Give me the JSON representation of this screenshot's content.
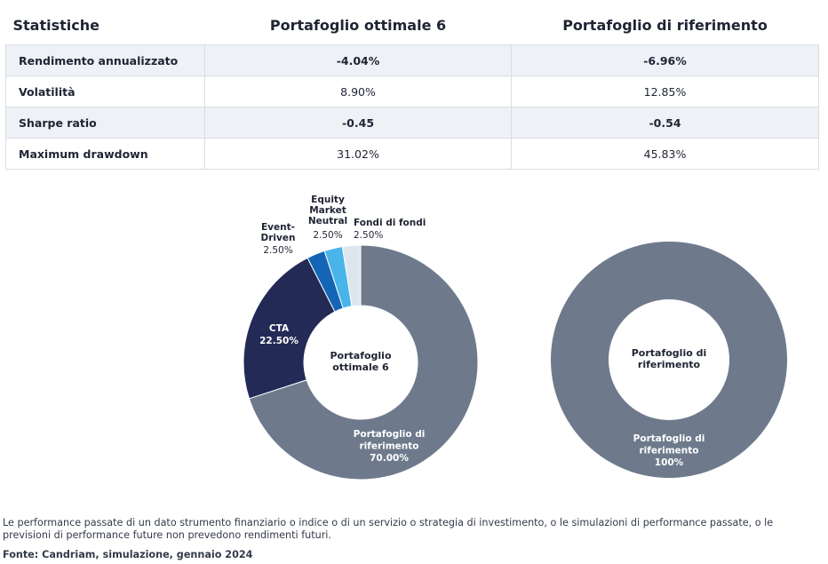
{
  "table": {
    "headers": [
      "Statistiche",
      "Portafoglio ottimale 6",
      "Portafoglio di riferimento"
    ],
    "rows": [
      {
        "label": "Rendimento annualizzato",
        "values": [
          "-4.04%",
          "-6.96%"
        ],
        "bold": true
      },
      {
        "label": "Volatilità",
        "values": [
          "8.90%",
          "12.85%"
        ],
        "bold": false
      },
      {
        "label": "Sharpe ratio",
        "values": [
          "-0.45",
          "-0.54"
        ],
        "bold": true
      },
      {
        "label": "Maximum drawdown",
        "values": [
          "31.02%",
          "45.83%"
        ],
        "bold": false
      }
    ]
  },
  "chart_data": [
    {
      "type": "pie",
      "center_label": [
        "Portafoglio",
        "ottimale 6"
      ],
      "slices": [
        {
          "name": [
            "Portafoglio di",
            "riferimento"
          ],
          "value": 70.0,
          "label": "70.00%",
          "color": "#6e7a8c"
        },
        {
          "name": [
            "CTA"
          ],
          "value": 22.5,
          "label": "22.50%",
          "color": "#232a56"
        },
        {
          "name": [
            "Event-",
            "Driven"
          ],
          "value": 2.5,
          "label": "2.50%",
          "color": "#1565b5"
        },
        {
          "name": [
            "Equity",
            "Market",
            "Neutral"
          ],
          "value": 2.5,
          "label": "2.50%",
          "color": "#49b4ea"
        },
        {
          "name": [
            "Fondi di fondi"
          ],
          "value": 2.5,
          "label": "2.50%",
          "color": "#dde6ee"
        }
      ]
    },
    {
      "type": "pie",
      "center_label": [
        "Portafoglio di",
        "riferimento"
      ],
      "slices": [
        {
          "name": [
            "Portafoglio di",
            "riferimento"
          ],
          "value": 100,
          "label": "100%",
          "color": "#6e7a8c"
        }
      ]
    }
  ],
  "disclaimer": "Le performance passate di un dato strumento finanziario o indice o di un servizio o strategia di investimento, o le simulazioni di performance passate, o le previsioni di performance future non prevedono rendimenti futuri.",
  "source": "Fonte: Candriam, simulazione, gennaio 2024"
}
